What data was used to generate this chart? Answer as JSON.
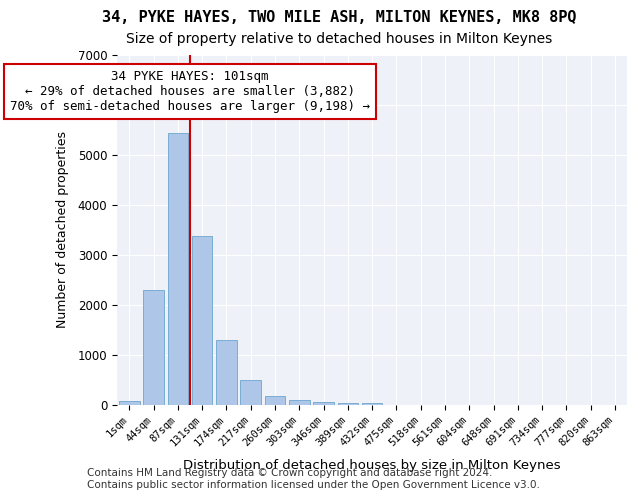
{
  "title1": "34, PYKE HAYES, TWO MILE ASH, MILTON KEYNES, MK8 8PQ",
  "title2": "Size of property relative to detached houses in Milton Keynes",
  "xlabel": "Distribution of detached houses by size in Milton Keynes",
  "ylabel": "Number of detached properties",
  "bar_labels": [
    "1sqm",
    "44sqm",
    "87sqm",
    "131sqm",
    "174sqm",
    "217sqm",
    "260sqm",
    "303sqm",
    "346sqm",
    "389sqm",
    "432sqm",
    "475sqm",
    "518sqm",
    "561sqm",
    "604sqm",
    "648sqm",
    "691sqm",
    "734sqm",
    "777sqm",
    "820sqm",
    "863sqm"
  ],
  "bar_heights": [
    80,
    2300,
    5450,
    3380,
    1310,
    510,
    175,
    95,
    65,
    50,
    35,
    0,
    0,
    0,
    0,
    0,
    0,
    0,
    0,
    0,
    0
  ],
  "bar_color": "#aec6e8",
  "bar_edge_color": "#7aadd4",
  "vline_x": 2,
  "vline_color": "#cc0000",
  "annotation_text": "34 PYKE HAYES: 101sqm\n← 29% of detached houses are smaller (3,882)\n70% of semi-detached houses are larger (9,198) →",
  "annotation_box_color": "#ffffff",
  "annotation_box_edge": "#cc0000",
  "ylim": [
    0,
    7000
  ],
  "yticks": [
    0,
    1000,
    2000,
    3000,
    4000,
    5000,
    6000,
    7000
  ],
  "bg_color": "#eef2f8",
  "footer": "Contains HM Land Registry data © Crown copyright and database right 2024.\nContains public sector information licensed under the Open Government Licence v3.0.",
  "title1_fontsize": 11,
  "title2_fontsize": 10,
  "xlabel_fontsize": 9.5,
  "ylabel_fontsize": 9,
  "annotation_fontsize": 9,
  "footer_fontsize": 7.5
}
